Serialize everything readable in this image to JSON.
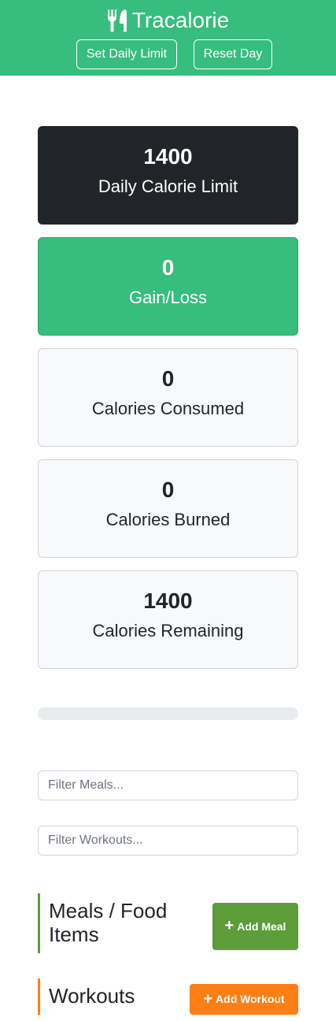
{
  "header": {
    "app_title": "Tracalorie",
    "set_limit_label": "Set Daily Limit",
    "reset_day_label": "Reset Day",
    "brand_color": "#37bd7e",
    "icon": "utensils-icon"
  },
  "stats": {
    "daily_limit": {
      "value": "1400",
      "label": "Daily Calorie Limit"
    },
    "gain_loss": {
      "value": "0",
      "label": "Gain/Loss"
    },
    "consumed": {
      "value": "0",
      "label": "Calories Consumed"
    },
    "burned": {
      "value": "0",
      "label": "Calories Burned"
    },
    "remaining": {
      "value": "1400",
      "label": "Calories Remaining"
    }
  },
  "progress": {
    "percent": 0
  },
  "filters": {
    "meals_placeholder": "Filter Meals...",
    "workouts_placeholder": "Filter Workouts..."
  },
  "meals": {
    "title": "Meals / Food Items",
    "add_label": "Add Meal",
    "accent": "#5c9c39"
  },
  "workouts": {
    "title": "Workouts",
    "add_label": "Add Workout",
    "accent": "#fd7e14"
  }
}
